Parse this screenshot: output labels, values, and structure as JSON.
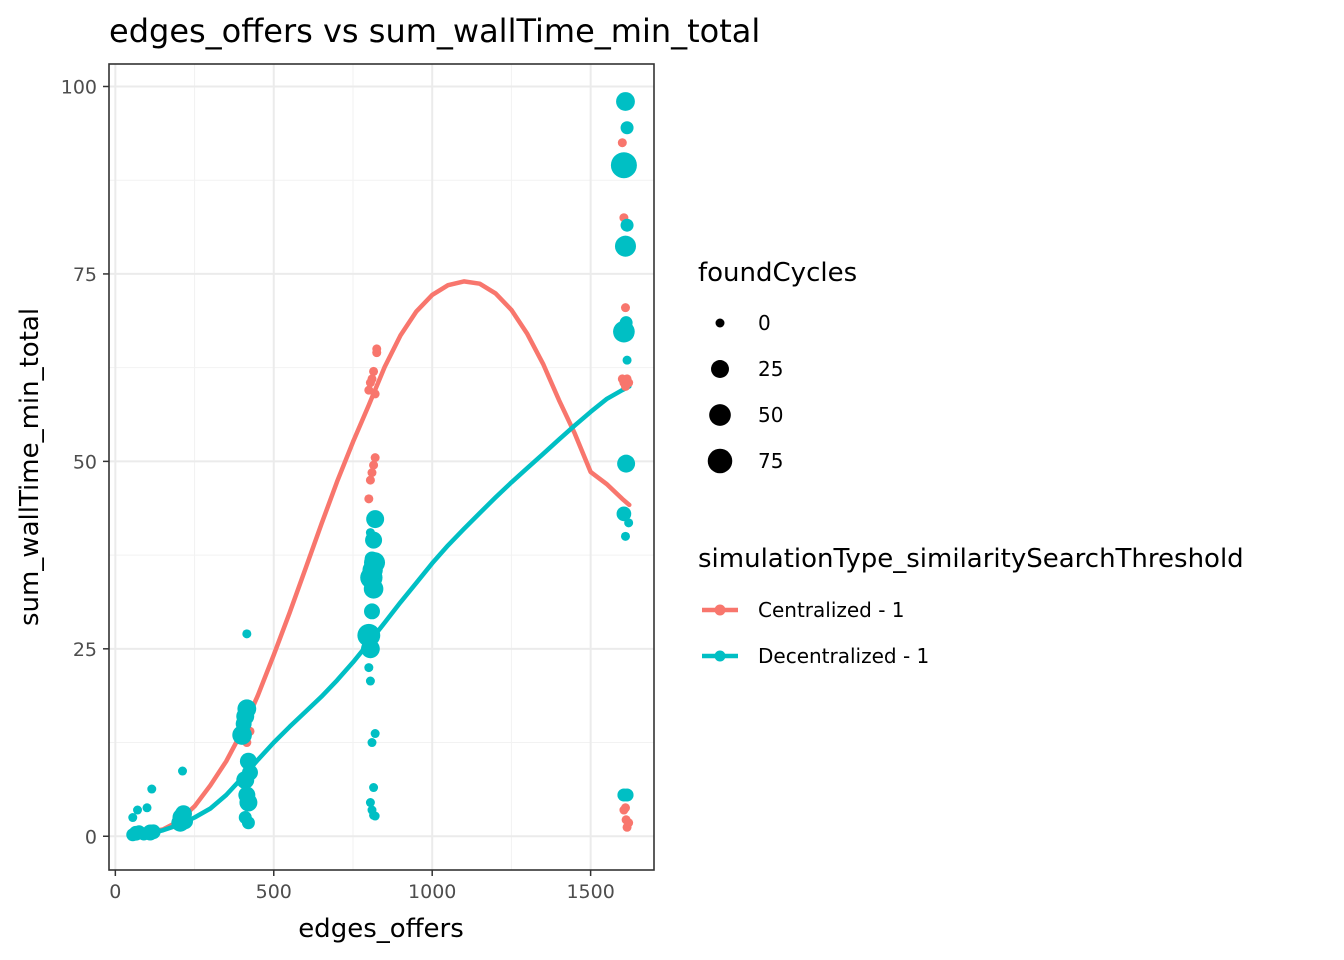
{
  "chart_data": {
    "type": "scatter",
    "title": "edges_offers  vs  sum_wallTime_min_total",
    "xlabel": "edges_offers",
    "ylabel": "sum_wallTime_min_total",
    "xlim": [
      -20,
      1700
    ],
    "ylim": [
      -4.5,
      103
    ],
    "xticks": [
      0,
      500,
      1000,
      1500
    ],
    "xtick_labels": [
      "0",
      "500",
      "1000",
      "1500"
    ],
    "yticks": [
      0,
      25,
      50,
      75,
      100
    ],
    "ytick_labels": [
      "0",
      "25",
      "50",
      "75",
      "100"
    ],
    "grid": true,
    "legend_placement": "right",
    "size_legend": {
      "title": "foundCycles",
      "entries": [
        {
          "label": "0",
          "value": 0
        },
        {
          "label": "25",
          "value": 25
        },
        {
          "label": "50",
          "value": 50
        },
        {
          "label": "75",
          "value": 75
        }
      ]
    },
    "color_legend": {
      "title": "simulationType_similaritySearchThreshold"
    },
    "series": [
      {
        "name": "Centralized - 1",
        "color": "#F8766D",
        "points": [
          [
            60,
            0.2,
            0
          ],
          [
            80,
            0.4,
            0
          ],
          [
            100,
            0.5,
            0
          ],
          [
            120,
            0.6,
            0
          ],
          [
            210,
            2.2,
            0
          ],
          [
            220,
            3.0,
            0
          ],
          [
            215,
            2.0,
            0
          ],
          [
            410,
            15.5,
            0
          ],
          [
            420,
            16.8,
            0
          ],
          [
            415,
            12.5,
            0
          ],
          [
            425,
            14.0,
            0
          ],
          [
            800,
            45.0,
            0
          ],
          [
            805,
            47.5,
            0
          ],
          [
            810,
            48.5,
            0
          ],
          [
            815,
            49.5,
            0
          ],
          [
            820,
            50.5,
            0
          ],
          [
            800,
            59.5,
            0
          ],
          [
            805,
            60.5,
            0
          ],
          [
            810,
            61.0,
            0
          ],
          [
            815,
            62.0,
            0
          ],
          [
            820,
            59.0,
            0
          ],
          [
            825,
            65.0,
            0
          ],
          [
            825,
            64.5,
            0
          ],
          [
            1600,
            92.5,
            0
          ],
          [
            1605,
            82.5,
            0
          ],
          [
            1610,
            70.5,
            0
          ],
          [
            1600,
            61.0,
            0
          ],
          [
            1605,
            60.5,
            0
          ],
          [
            1610,
            60.0,
            0
          ],
          [
            1615,
            61.0,
            0
          ],
          [
            1620,
            60.5,
            0
          ],
          [
            1605,
            3.5,
            0
          ],
          [
            1610,
            3.8,
            0
          ],
          [
            1612,
            2.2,
            0
          ],
          [
            1615,
            1.2,
            0
          ],
          [
            1620,
            1.8,
            0
          ]
        ],
        "smooth": [
          [
            60,
            0.2
          ],
          [
            100,
            0.5
          ],
          [
            150,
            0.9
          ],
          [
            200,
            2.0
          ],
          [
            250,
            4.0
          ],
          [
            300,
            6.8
          ],
          [
            350,
            10.0
          ],
          [
            400,
            14.0
          ],
          [
            450,
            18.8
          ],
          [
            500,
            24.2
          ],
          [
            550,
            29.8
          ],
          [
            600,
            35.7
          ],
          [
            650,
            41.6
          ],
          [
            700,
            47.3
          ],
          [
            750,
            52.6
          ],
          [
            800,
            57.5
          ],
          [
            850,
            62.6
          ],
          [
            900,
            66.8
          ],
          [
            950,
            70.0
          ],
          [
            1000,
            72.2
          ],
          [
            1050,
            73.5
          ],
          [
            1100,
            74.0
          ],
          [
            1150,
            73.7
          ],
          [
            1200,
            72.4
          ],
          [
            1250,
            70.2
          ],
          [
            1300,
            67.0
          ],
          [
            1350,
            63.0
          ],
          [
            1400,
            58.2
          ],
          [
            1450,
            53.7
          ],
          [
            1500,
            48.6
          ],
          [
            1550,
            47.0
          ],
          [
            1600,
            45.0
          ],
          [
            1622,
            44.2
          ]
        ]
      },
      {
        "name": "Decentralized - 1",
        "color": "#00BFC4",
        "points": [
          [
            55,
            0.2,
            5
          ],
          [
            65,
            0.4,
            10
          ],
          [
            75,
            0.6,
            5
          ],
          [
            90,
            0.3,
            5
          ],
          [
            110,
            0.5,
            15
          ],
          [
            120,
            0.6,
            10
          ],
          [
            55,
            2.5,
            0
          ],
          [
            70,
            3.5,
            0
          ],
          [
            100,
            3.8,
            0
          ],
          [
            115,
            6.3,
            0
          ],
          [
            205,
            1.8,
            25
          ],
          [
            210,
            2.5,
            30
          ],
          [
            215,
            3.0,
            20
          ],
          [
            220,
            2.0,
            15
          ],
          [
            212,
            8.7,
            0
          ],
          [
            400,
            13.5,
            35
          ],
          [
            405,
            15.0,
            15
          ],
          [
            410,
            16.0,
            25
          ],
          [
            415,
            17.0,
            30
          ],
          [
            420,
            10.0,
            20
          ],
          [
            425,
            8.5,
            15
          ],
          [
            410,
            7.5,
            25
          ],
          [
            415,
            5.5,
            20
          ],
          [
            420,
            4.5,
            25
          ],
          [
            410,
            2.5,
            5
          ],
          [
            420,
            1.8,
            5
          ],
          [
            415,
            27.0,
            0
          ],
          [
            800,
            26.8,
            60
          ],
          [
            805,
            25.0,
            30
          ],
          [
            810,
            30.0,
            15
          ],
          [
            815,
            33.0,
            35
          ],
          [
            808,
            34.5,
            55
          ],
          [
            812,
            35.5,
            40
          ],
          [
            818,
            36.5,
            45
          ],
          [
            815,
            39.5,
            20
          ],
          [
            820,
            42.3,
            25
          ],
          [
            805,
            40.5,
            0
          ],
          [
            810,
            37.0,
            10
          ],
          [
            800,
            22.5,
            0
          ],
          [
            805,
            20.7,
            0
          ],
          [
            810,
            12.5,
            0
          ],
          [
            820,
            13.7,
            0
          ],
          [
            815,
            6.5,
            0
          ],
          [
            805,
            4.5,
            0
          ],
          [
            810,
            3.5,
            0
          ],
          [
            815,
            2.8,
            0
          ],
          [
            820,
            2.7,
            0
          ],
          [
            1610,
            98.0,
            30
          ],
          [
            1615,
            94.5,
            5
          ],
          [
            1605,
            89.5,
            90
          ],
          [
            1615,
            81.5,
            5
          ],
          [
            1610,
            78.7,
            45
          ],
          [
            1605,
            67.3,
            50
          ],
          [
            1612,
            68.5,
            5
          ],
          [
            1615,
            63.5,
            0
          ],
          [
            1612,
            49.7,
            25
          ],
          [
            1605,
            43.0,
            10
          ],
          [
            1620,
            41.8,
            0
          ],
          [
            1610,
            40.0,
            0
          ],
          [
            1605,
            5.5,
            5
          ],
          [
            1615,
            5.5,
            5
          ]
        ],
        "smooth": [
          [
            55,
            0.1
          ],
          [
            100,
            0.3
          ],
          [
            150,
            0.8
          ],
          [
            200,
            1.5
          ],
          [
            250,
            2.5
          ],
          [
            300,
            3.7
          ],
          [
            350,
            5.5
          ],
          [
            400,
            7.8
          ],
          [
            450,
            10.2
          ],
          [
            500,
            12.5
          ],
          [
            550,
            14.6
          ],
          [
            600,
            16.6
          ],
          [
            650,
            18.6
          ],
          [
            700,
            20.8
          ],
          [
            750,
            23.2
          ],
          [
            800,
            25.8
          ],
          [
            850,
            28.5
          ],
          [
            900,
            31.2
          ],
          [
            950,
            33.8
          ],
          [
            1000,
            36.4
          ],
          [
            1050,
            38.8
          ],
          [
            1100,
            41.0
          ],
          [
            1150,
            43.1
          ],
          [
            1200,
            45.2
          ],
          [
            1250,
            47.2
          ],
          [
            1300,
            49.1
          ],
          [
            1350,
            51.0
          ],
          [
            1400,
            52.9
          ],
          [
            1450,
            54.8
          ],
          [
            1500,
            56.6
          ],
          [
            1550,
            58.3
          ],
          [
            1600,
            59.5
          ],
          [
            1622,
            60.0
          ]
        ]
      }
    ]
  }
}
